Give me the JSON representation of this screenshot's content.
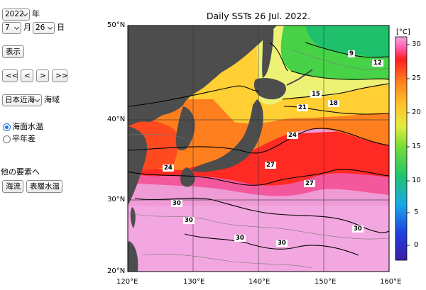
{
  "controls": {
    "year": "2022",
    "year_unit": "年",
    "month": "7",
    "month_unit": "月",
    "day": "26",
    "day_unit": "日",
    "show_button": "表示",
    "nav": [
      "<<",
      "<",
      ">",
      ">>"
    ],
    "region_select": "日本近海",
    "region_unit": "海域",
    "radio_sst": "海面水温",
    "radio_anomaly": "平年差",
    "other_label": "他の要素へ",
    "current_button": "海流",
    "subsurface_button": "表層水温"
  },
  "map": {
    "title": "Daily SSTs 26 Jul. 2022.",
    "lat_labels": [
      "50°N",
      "40°N",
      "30°N",
      "20°N"
    ],
    "lon_labels": [
      "120°E",
      "130°E",
      "140°E",
      "150°E",
      "160°E"
    ],
    "colorbar_unit": "[°C]",
    "colorbar_ticks": [
      "30",
      "25",
      "20",
      "15",
      "10",
      "5",
      "0"
    ],
    "colorbar_range": [
      -2,
      31
    ],
    "contour_labels": [
      "9",
      "12",
      "15",
      "18",
      "21",
      "24",
      "24",
      "27",
      "27",
      "30",
      "30",
      "30",
      "30",
      "30"
    ],
    "colors": {
      "land": "#4d4d4d",
      "hot": "#ef9bd6",
      "warm": "#ff2020",
      "mild": "#ffcc33",
      "cool": "#47d247"
    }
  }
}
